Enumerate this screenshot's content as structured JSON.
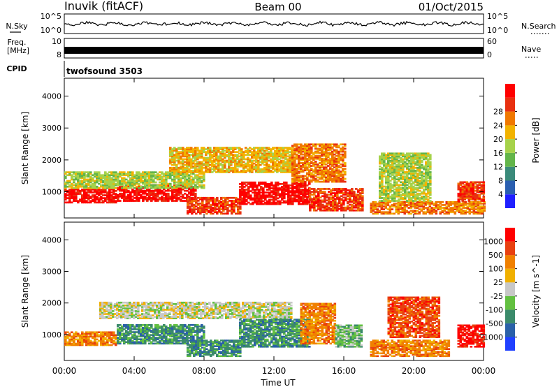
{
  "header": {
    "station": "Inuvik (fitACF)",
    "beam": "Beam 00",
    "date": "01/Oct/2015"
  },
  "status_panels": {
    "nsky_label": "N.Sky",
    "nsky_ticks": [
      "10^5",
      "10^0"
    ],
    "nsearch_ticks": [
      "10^5",
      "10^0"
    ],
    "nsearch_label": "N.Search",
    "freq_label_1": "Freq.",
    "freq_label_2": "[MHz]",
    "freq_ticks": [
      "10",
      "8"
    ],
    "nave_ticks": [
      "60",
      "0"
    ],
    "nave_label": "Nave",
    "cpid_label": "CPID",
    "cpid_value": "twofsound 3503"
  },
  "chart_data": [
    {
      "type": "heatmap",
      "name": "power",
      "ylabel": "Slant Range [km]",
      "xlabel": "Time UT",
      "x_ticks": [
        "00:00",
        "04:00",
        "08:00",
        "12:00",
        "16:00",
        "20:00",
        "00:00"
      ],
      "x_range_hours": [
        0,
        24
      ],
      "y_ticks": [
        "1000",
        "2000",
        "3000",
        "4000"
      ],
      "y_range_km": [
        180,
        4560
      ],
      "colorbar": {
        "label": "Power [dB]",
        "ticks": [
          "4",
          "8",
          "12",
          "16",
          "20",
          "24",
          "28"
        ],
        "colors": [
          "#1f1fff",
          "#2a5fb0",
          "#3a8a7a",
          "#63b54a",
          "#a6d24a",
          "#f2b300",
          "#f07800",
          "#e83010",
          "#ff0000"
        ]
      },
      "bands": [
        {
          "t0": 0.0,
          "t1": 3.0,
          "r0": 650,
          "r1": 1100,
          "level": 8
        },
        {
          "t0": 3.0,
          "t1": 7.5,
          "r0": 700,
          "r1": 1200,
          "level": 8
        },
        {
          "t0": 7.0,
          "t1": 10.0,
          "r0": 300,
          "r1": 800,
          "level": 7
        },
        {
          "t0": 10.0,
          "t1": 14.0,
          "r0": 600,
          "r1": 1300,
          "level": 8
        },
        {
          "t0": 14.0,
          "t1": 17.0,
          "r0": 400,
          "r1": 1100,
          "level": 7
        },
        {
          "t0": 17.5,
          "t1": 24.0,
          "r0": 300,
          "r1": 700,
          "level": 6
        },
        {
          "t0": 22.5,
          "t1": 24.0,
          "r0": 700,
          "r1": 1300,
          "level": 7
        },
        {
          "t0": 0.0,
          "t1": 8.0,
          "r0": 1100,
          "r1": 1600,
          "level": 4
        },
        {
          "t0": 6.0,
          "t1": 13.0,
          "r0": 1600,
          "r1": 2400,
          "level": 5
        },
        {
          "t0": 13.0,
          "t1": 16.0,
          "r0": 1300,
          "r1": 2500,
          "level": 6
        },
        {
          "t0": 18.0,
          "t1": 21.0,
          "r0": 700,
          "r1": 2200,
          "level": 4
        }
      ]
    },
    {
      "type": "heatmap",
      "name": "velocity",
      "ylabel": "Slant Range [km]",
      "xlabel": "Time UT",
      "x_ticks": [
        "00:00",
        "04:00",
        "08:00",
        "12:00",
        "16:00",
        "20:00",
        "00:00"
      ],
      "x_range_hours": [
        0,
        24
      ],
      "y_ticks": [
        "1000",
        "2000",
        "3000",
        "4000"
      ],
      "y_range_km": [
        180,
        4560
      ],
      "colorbar": {
        "label": "Velocity [m s^-1]",
        "ticks": [
          "1000",
          "500",
          "100",
          "25",
          "-25",
          "-100",
          "-500",
          "-1000"
        ],
        "colors": [
          "#2040ff",
          "#2a60a8",
          "#3a8a6a",
          "#62c040",
          "#c8c8c8",
          "#f0b000",
          "#f08000",
          "#e84010",
          "#ff0000"
        ]
      },
      "bands": [
        {
          "t0": 0.0,
          "t1": 3.0,
          "r0": 650,
          "r1": 1100,
          "level": 6
        },
        {
          "t0": 3.0,
          "t1": 8.0,
          "r0": 700,
          "r1": 1300,
          "level": 2
        },
        {
          "t0": 7.0,
          "t1": 10.0,
          "r0": 300,
          "r1": 800,
          "level": 2
        },
        {
          "t0": 2.0,
          "t1": 13.0,
          "r0": 1500,
          "r1": 2000,
          "level": 4
        },
        {
          "t0": 10.0,
          "t1": 14.0,
          "r0": 600,
          "r1": 1500,
          "level": 2
        },
        {
          "t0": 13.5,
          "t1": 15.5,
          "r0": 700,
          "r1": 2000,
          "level": 6
        },
        {
          "t0": 15.5,
          "t1": 17.0,
          "r0": 600,
          "r1": 1300,
          "level": 3
        },
        {
          "t0": 17.5,
          "t1": 22.0,
          "r0": 300,
          "r1": 800,
          "level": 6
        },
        {
          "t0": 18.5,
          "t1": 21.5,
          "r0": 900,
          "r1": 2200,
          "level": 7
        },
        {
          "t0": 22.5,
          "t1": 24.0,
          "r0": 600,
          "r1": 1300,
          "level": 8
        }
      ]
    }
  ]
}
